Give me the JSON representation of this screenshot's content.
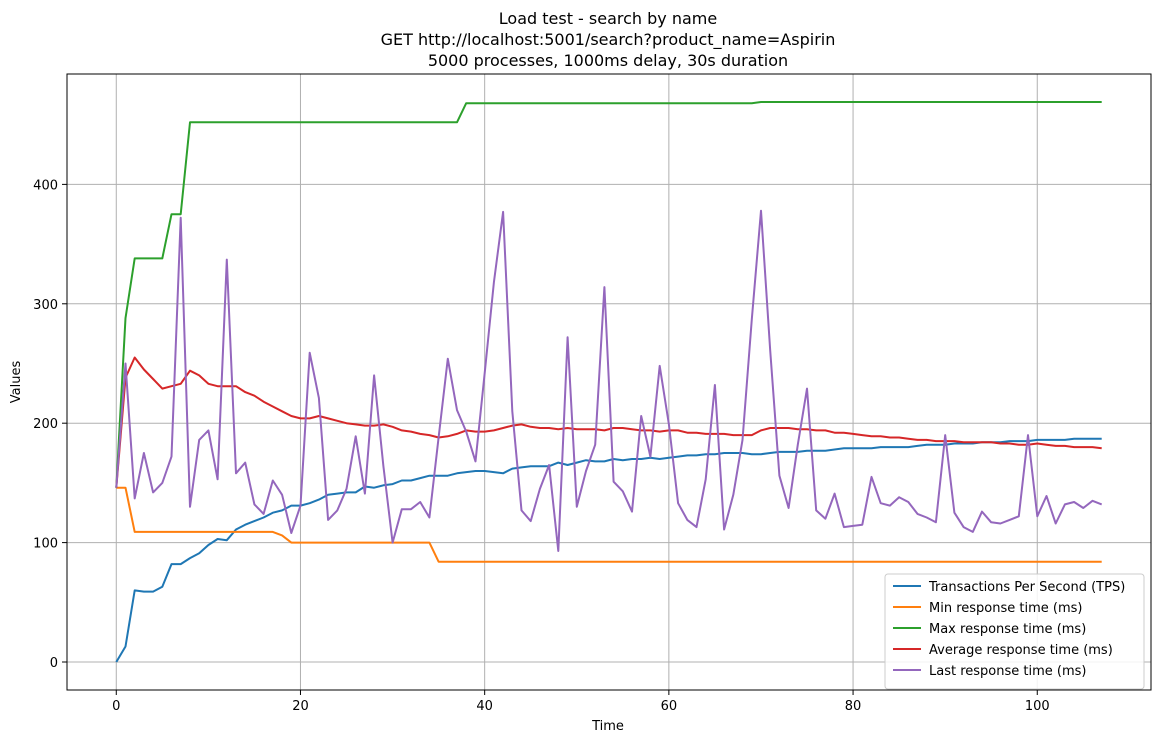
{
  "chart_data": {
    "type": "line",
    "title": [
      "Load test - search by name",
      "GET http://localhost:5001/search?product_name=Aspirin",
      "5000 processes, 1000ms delay, 30s duration"
    ],
    "xlabel": "Time",
    "ylabel": "Values",
    "xlim": [
      -5.35,
      112.35
    ],
    "ylim": [
      -23.45,
      492.45
    ],
    "xticks": [
      0,
      20,
      40,
      60,
      80,
      100
    ],
    "yticks": [
      0,
      100,
      200,
      300,
      400
    ],
    "grid": true,
    "legend_position": "lower right",
    "series": [
      {
        "name": "Transactions Per Second (TPS)",
        "color": "#1f77b4",
        "x": [
          0,
          1,
          2,
          3,
          4,
          5,
          6,
          7,
          8,
          9,
          10,
          11,
          12,
          13,
          14,
          15,
          16,
          17,
          18,
          19,
          20,
          21,
          22,
          23,
          24,
          25,
          26,
          27,
          28,
          29,
          30,
          31,
          32,
          33,
          34,
          35,
          36,
          37,
          38,
          39,
          40,
          41,
          42,
          43,
          44,
          45,
          46,
          47,
          48,
          49,
          50,
          51,
          52,
          53,
          54,
          55,
          56,
          57,
          58,
          59,
          60,
          61,
          62,
          63,
          64,
          65,
          66,
          67,
          68,
          69,
          70,
          71,
          72,
          73,
          74,
          75,
          76,
          77,
          78,
          79,
          80,
          81,
          82,
          83,
          84,
          85,
          86,
          87,
          88,
          89,
          90,
          91,
          92,
          93,
          94,
          95,
          96,
          97,
          98,
          99,
          100,
          101,
          102,
          103,
          104,
          105,
          106,
          107
        ],
        "values": [
          0,
          13,
          60,
          59,
          59,
          63,
          82,
          82,
          87,
          91,
          98,
          103,
          102,
          111,
          115,
          118,
          121,
          125,
          127,
          131,
          131,
          133,
          136,
          140,
          141,
          142,
          142,
          147,
          146,
          148,
          149,
          152,
          152,
          154,
          156,
          156,
          156,
          158,
          159,
          160,
          160,
          159,
          158,
          162,
          163,
          164,
          164,
          164,
          167,
          165,
          167,
          169,
          168,
          168,
          170,
          169,
          170,
          170,
          171,
          170,
          171,
          172,
          173,
          173,
          174,
          174,
          175,
          175,
          175,
          174,
          174,
          175,
          176,
          176,
          176,
          177,
          177,
          177,
          178,
          179,
          179,
          179,
          179,
          180,
          180,
          180,
          180,
          181,
          182,
          182,
          182,
          183,
          183,
          183,
          184,
          184,
          184,
          185,
          185,
          185,
          186,
          186,
          186,
          186,
          187,
          187,
          187,
          187
        ]
      },
      {
        "name": "Min response time (ms)",
        "color": "#ff7f0e",
        "x": [
          0,
          1,
          2,
          17,
          18,
          19,
          33,
          34,
          35,
          107
        ],
        "values": [
          146,
          146,
          109,
          109,
          106,
          100,
          100,
          100,
          84,
          84
        ]
      },
      {
        "name": "Max response time (ms)",
        "color": "#2ca02c",
        "x": [
          0,
          1,
          2,
          5,
          6,
          7,
          8,
          37,
          38,
          69,
          70,
          107
        ],
        "values": [
          146,
          288,
          338,
          338,
          375,
          375,
          452,
          452,
          468,
          468,
          469,
          469
        ]
      },
      {
        "name": "Average response time (ms)",
        "color": "#d62728",
        "x": [
          0,
          1,
          2,
          3,
          4,
          5,
          6,
          7,
          8,
          9,
          10,
          11,
          12,
          13,
          14,
          15,
          16,
          17,
          18,
          19,
          20,
          21,
          22,
          23,
          24,
          25,
          26,
          27,
          28,
          29,
          30,
          31,
          32,
          33,
          34,
          35,
          36,
          37,
          38,
          39,
          40,
          41,
          42,
          43,
          44,
          45,
          46,
          47,
          48,
          49,
          50,
          51,
          52,
          53,
          54,
          55,
          56,
          57,
          58,
          59,
          60,
          61,
          62,
          63,
          64,
          65,
          66,
          67,
          68,
          69,
          70,
          71,
          72,
          73,
          74,
          75,
          76,
          77,
          78,
          79,
          80,
          81,
          82,
          83,
          84,
          85,
          86,
          87,
          88,
          89,
          90,
          91,
          92,
          93,
          94,
          95,
          96,
          97,
          98,
          99,
          100,
          101,
          102,
          103,
          104,
          105,
          106,
          107
        ],
        "values": [
          146,
          238,
          255,
          245,
          237,
          229,
          231,
          233,
          244,
          240,
          233,
          231,
          231,
          231,
          226,
          223,
          218,
          214,
          210,
          206,
          204,
          204,
          206,
          204,
          202,
          200,
          199,
          198,
          198,
          199,
          197,
          194,
          193,
          191,
          190,
          188,
          189,
          191,
          194,
          193,
          193,
          194,
          196,
          198,
          199,
          197,
          196,
          196,
          195,
          196,
          195,
          195,
          195,
          194,
          196,
          196,
          195,
          194,
          194,
          193,
          194,
          194,
          192,
          192,
          191,
          191,
          191,
          190,
          190,
          190,
          194,
          196,
          196,
          196,
          195,
          195,
          194,
          194,
          192,
          192,
          191,
          190,
          189,
          189,
          188,
          188,
          187,
          186,
          186,
          185,
          185,
          185,
          184,
          184,
          184,
          184,
          183,
          183,
          182,
          182,
          183,
          182,
          181,
          181,
          180,
          180,
          180,
          179
        ]
      },
      {
        "name": "Last response time (ms)",
        "color": "#9467bd",
        "x": [
          0,
          1,
          2,
          3,
          4,
          5,
          6,
          7,
          8,
          9,
          10,
          11,
          12,
          13,
          14,
          15,
          16,
          17,
          18,
          19,
          20,
          21,
          22,
          23,
          24,
          25,
          26,
          27,
          28,
          29,
          30,
          31,
          32,
          33,
          34,
          35,
          36,
          37,
          38,
          39,
          40,
          41,
          42,
          43,
          44,
          45,
          46,
          47,
          48,
          49,
          50,
          51,
          52,
          53,
          54,
          55,
          56,
          57,
          58,
          59,
          60,
          61,
          62,
          63,
          64,
          65,
          66,
          67,
          68,
          69,
          70,
          71,
          72,
          73,
          74,
          75,
          76,
          77,
          78,
          79,
          80,
          81,
          82,
          83,
          84,
          85,
          86,
          87,
          88,
          89,
          90,
          91,
          92,
          93,
          94,
          95,
          96,
          97,
          98,
          99,
          100,
          101,
          102,
          103,
          104,
          105,
          106,
          107
        ],
        "values": [
          146,
          250,
          137,
          175,
          142,
          150,
          172,
          372,
          130,
          186,
          194,
          153,
          337,
          158,
          167,
          132,
          124,
          152,
          140,
          108,
          131,
          259,
          221,
          119,
          127,
          145,
          189,
          141,
          240,
          164,
          100,
          128,
          128,
          134,
          121,
          188,
          254,
          211,
          193,
          168,
          242,
          318,
          377,
          210,
          127,
          118,
          145,
          165,
          93,
          272,
          130,
          160,
          182,
          314,
          151,
          143,
          126,
          206,
          172,
          248,
          199,
          133,
          119,
          113,
          153,
          232,
          111,
          140,
          186,
          287,
          378,
          261,
          156,
          129,
          182,
          229,
          127,
          120,
          141,
          113,
          114,
          115,
          155,
          133,
          131,
          138,
          134,
          124,
          121,
          117,
          190,
          125,
          113,
          109,
          126,
          117,
          116,
          119,
          122,
          190,
          122,
          139,
          116,
          132,
          134,
          129,
          135,
          132
        ]
      }
    ]
  }
}
